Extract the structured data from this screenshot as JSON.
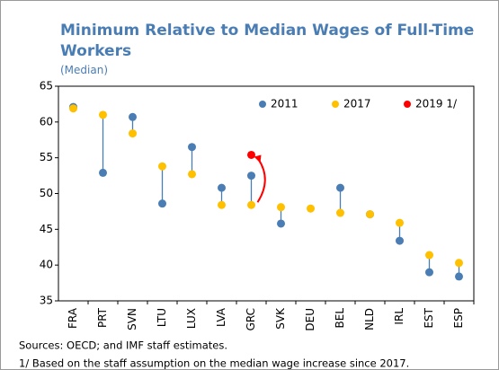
{
  "chart_data": {
    "type": "dotplot",
    "title": "Minimum Relative to Median Wages of Full-Time Workers",
    "subtitle": "(Median)",
    "categories": [
      "FRA",
      "PRT",
      "SVN",
      "LTU",
      "LUX",
      "LVA",
      "GRC",
      "SVK",
      "DEU",
      "BEL",
      "NLD",
      "IRL",
      "EST",
      "ESP"
    ],
    "series": [
      {
        "name": "2011",
        "color": "#4a7db4",
        "values": [
          62.1,
          52.9,
          60.7,
          48.6,
          56.5,
          50.8,
          52.5,
          45.8,
          null,
          50.8,
          47.1,
          43.4,
          39.0,
          38.4
        ]
      },
      {
        "name": "2017",
        "color": "#ffc000",
        "values": [
          61.9,
          61.0,
          58.4,
          53.8,
          52.7,
          48.4,
          48.4,
          48.1,
          47.9,
          47.3,
          47.1,
          45.9,
          41.4,
          40.3
        ]
      },
      {
        "name": "2019 1/",
        "color": "#ff0000",
        "values": [
          null,
          null,
          null,
          null,
          null,
          null,
          55.4,
          null,
          null,
          null,
          null,
          null,
          null,
          null
        ]
      }
    ],
    "ylim": [
      35,
      65
    ],
    "yticks": [
      35,
      40,
      45,
      50,
      55,
      60,
      65
    ],
    "legend": "top-right",
    "notes": [
      "Sources: OECD; and IMF staff estimates.",
      "1/ Based on the staff assumption on the median wage increase since 2017."
    ]
  }
}
